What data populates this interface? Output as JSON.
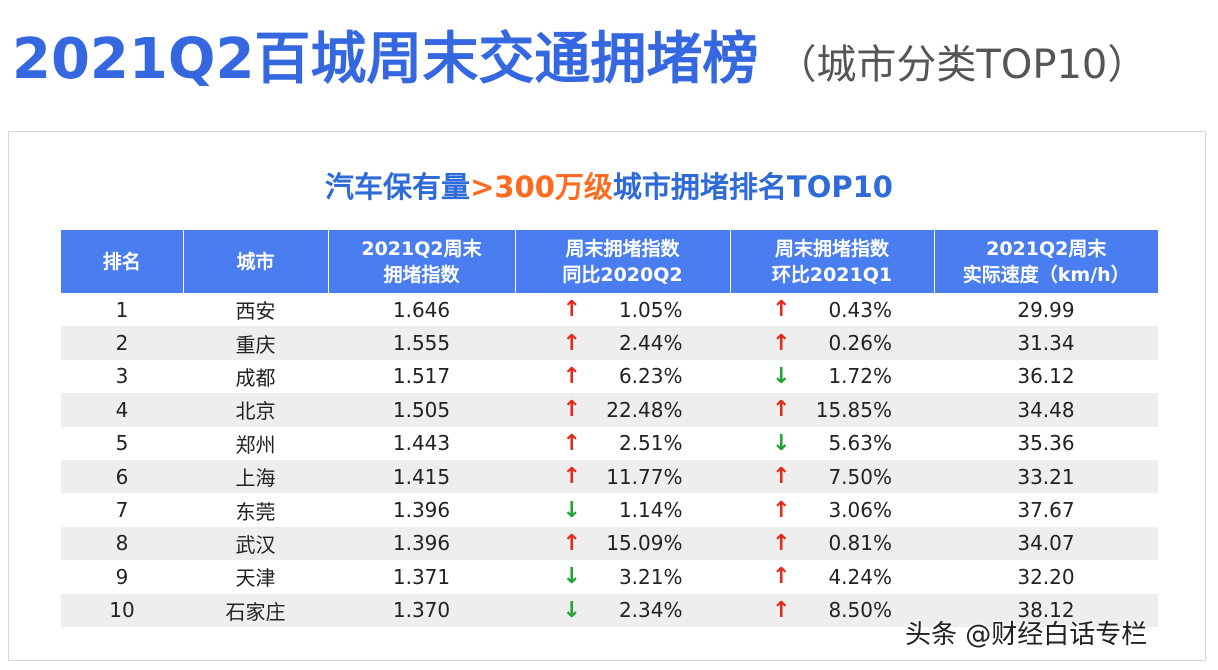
{
  "title": {
    "main": "2021Q2百城周末交通拥堵榜",
    "sub": "（城市分类TOP10）"
  },
  "table_title": {
    "part_a": "汽车保有量",
    "part_b": ">300万级",
    "part_c": "城市拥堵排名TOP10"
  },
  "columns": [
    {
      "line1": "排名",
      "line2": ""
    },
    {
      "line1": "城市",
      "line2": ""
    },
    {
      "line1": "2021Q2周末",
      "line2": "拥堵指数"
    },
    {
      "line1": "周末拥堵指数",
      "line2": "同比2020Q2"
    },
    {
      "line1": "周末拥堵指数",
      "line2": "环比2021Q1"
    },
    {
      "line1": "2021Q2周末",
      "line2": "实际速度（km/h）"
    }
  ],
  "rows": [
    {
      "rank": "1",
      "city": "西安",
      "index": "1.646",
      "yoy": "1.05%",
      "yoy_dir": "up",
      "qoq": "0.43%",
      "qoq_dir": "up",
      "speed": "29.99"
    },
    {
      "rank": "2",
      "city": "重庆",
      "index": "1.555",
      "yoy": "2.44%",
      "yoy_dir": "up",
      "qoq": "0.26%",
      "qoq_dir": "up",
      "speed": "31.34"
    },
    {
      "rank": "3",
      "city": "成都",
      "index": "1.517",
      "yoy": "6.23%",
      "yoy_dir": "up",
      "qoq": "1.72%",
      "qoq_dir": "down",
      "speed": "36.12"
    },
    {
      "rank": "4",
      "city": "北京",
      "index": "1.505",
      "yoy": "22.48%",
      "yoy_dir": "up",
      "qoq": "15.85%",
      "qoq_dir": "up",
      "speed": "34.48"
    },
    {
      "rank": "5",
      "city": "郑州",
      "index": "1.443",
      "yoy": "2.51%",
      "yoy_dir": "up",
      "qoq": "5.63%",
      "qoq_dir": "down",
      "speed": "35.36"
    },
    {
      "rank": "6",
      "city": "上海",
      "index": "1.415",
      "yoy": "11.77%",
      "yoy_dir": "up",
      "qoq": "7.50%",
      "qoq_dir": "up",
      "speed": "33.21"
    },
    {
      "rank": "7",
      "city": "东莞",
      "index": "1.396",
      "yoy": "1.14%",
      "yoy_dir": "down",
      "qoq": "3.06%",
      "qoq_dir": "up",
      "speed": "37.67"
    },
    {
      "rank": "8",
      "city": "武汉",
      "index": "1.396",
      "yoy": "15.09%",
      "yoy_dir": "up",
      "qoq": "0.81%",
      "qoq_dir": "up",
      "speed": "34.07"
    },
    {
      "rank": "9",
      "city": "天津",
      "index": "1.371",
      "yoy": "3.21%",
      "yoy_dir": "down",
      "qoq": "4.24%",
      "qoq_dir": "up",
      "speed": "32.20"
    },
    {
      "rank": "10",
      "city": "石家庄",
      "index": "1.370",
      "yoy": "2.34%",
      "yoy_dir": "down",
      "qoq": "8.50%",
      "qoq_dir": "up",
      "speed": "38.12"
    }
  ],
  "arrows": {
    "up": "↑",
    "down": "↓"
  },
  "colors": {
    "title_blue": "#3568e0",
    "header_blue": "#4a7ef0",
    "accent_orange": "#ff6a1f",
    "up_red": "#e22a1d",
    "down_green": "#21a336"
  },
  "watermark": "头条 @财经白话专栏"
}
